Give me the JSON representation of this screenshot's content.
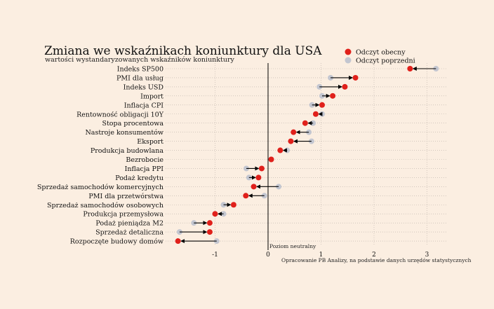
{
  "chart_data": {
    "type": "dot-arrow",
    "title": "Zmiana we wskaźnikach koniunktury dla USA",
    "subtitle": "wartości wystandaryzowanych wskaźników koniunktury",
    "legend": {
      "current_label": "Odczyt obecny",
      "previous_label": "Odczyt poprzedni",
      "placement": "top-right"
    },
    "colors": {
      "current": "#e0201b",
      "previous": "#c3c6d0",
      "arrow": "#000000",
      "grid": "#b9b0a8",
      "background": "#fbeee1"
    },
    "zero_line_label": "Poziom neutralny",
    "source": "Opracowanie PB Analizy, na podstawie danych urzędów statystycznych",
    "xlim": [
      -1.7,
      3.3
    ],
    "xticks": [
      -1,
      0,
      1,
      2,
      3
    ],
    "grid": true,
    "categories": [
      "Indeks SP500",
      "PMI dla usług",
      "Indeks USD",
      "Import",
      "Inflacja CPI",
      "Rentowność obligacji 10Y",
      "Stopa procentowa",
      "Nastroje konsumentów",
      "Eksport",
      "Produkcja budowlana",
      "Bezrobocie",
      "Inflacja PPI",
      "Podaż kredytu",
      "Sprzedaż samochodów komercyjnych",
      "PMI dla przetwórstwa",
      "Sprzedaż samochodów osobowych",
      "Produkcja przemysłowa",
      "Podaż pieniądza M2",
      "Sprzedaż detaliczna",
      "Rozpoczęte budowy domów"
    ],
    "series": [
      {
        "name": "Odczyt obecny",
        "values": [
          2.68,
          1.65,
          1.45,
          1.22,
          1.02,
          0.9,
          0.7,
          0.48,
          0.43,
          0.23,
          0.06,
          -0.12,
          -0.18,
          -0.27,
          -0.42,
          -0.65,
          -1.0,
          -1.1,
          -1.1,
          -1.7
        ]
      },
      {
        "name": "Odczyt poprzedni",
        "values": [
          3.17,
          1.18,
          0.97,
          1.02,
          0.83,
          1.02,
          0.85,
          0.77,
          0.82,
          0.36,
          0.06,
          -0.41,
          -0.36,
          0.2,
          -0.07,
          -0.84,
          -0.84,
          -1.4,
          -1.67,
          -0.97
        ]
      }
    ]
  }
}
